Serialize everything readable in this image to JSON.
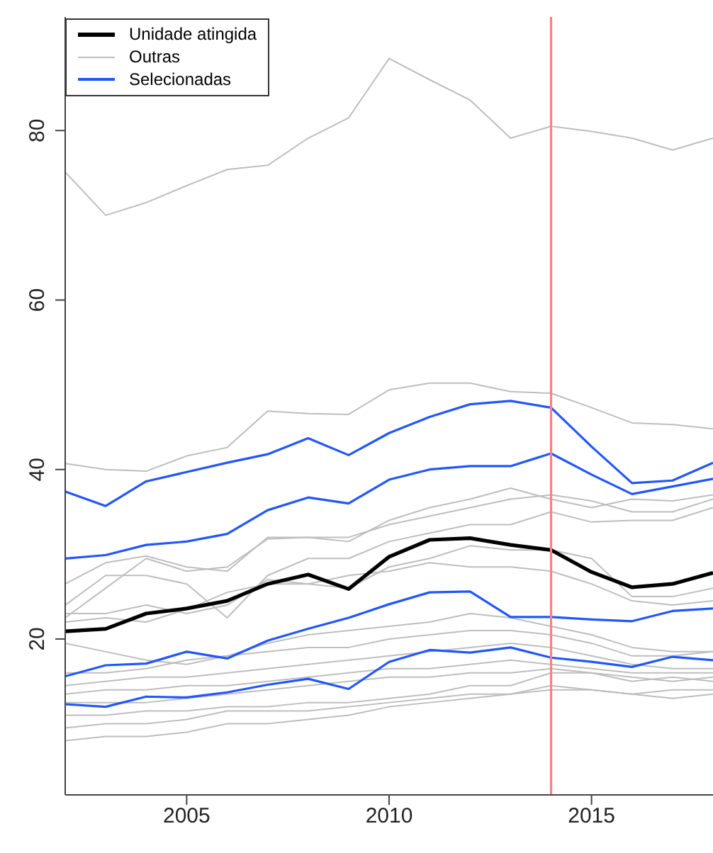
{
  "chart_data": {
    "type": "line",
    "x": [
      2002,
      2003,
      2004,
      2005,
      2006,
      2007,
      2008,
      2009,
      2010,
      2011,
      2012,
      2013,
      2014,
      2015,
      2016,
      2017,
      2018
    ],
    "series": [
      {
        "name": "Unidade atingida",
        "color": "#000000",
        "values": [
          20.9,
          21.2,
          23.0,
          23.6,
          24.5,
          26.5,
          27.6,
          25.9,
          29.7,
          31.7,
          31.9,
          31.1,
          30.5,
          27.9,
          26.1,
          26.5,
          27.8
        ]
      },
      {
        "name": "Outras",
        "color": "#bebebe",
        "values": [
          75.1,
          70.0,
          71.5,
          73.5,
          75.4,
          75.9,
          79.1,
          81.5,
          88.5,
          86.0,
          83.6,
          79.1,
          80.5,
          79.9,
          79.1,
          77.7,
          79.1
        ]
      },
      {
        "color": "#bebebe",
        "values": [
          40.7,
          40.0,
          39.8,
          41.6,
          42.6,
          46.9,
          46.6,
          46.5,
          49.4,
          50.2,
          50.2,
          49.2,
          49.0,
          47.3,
          45.5,
          45.3,
          44.8
        ]
      },
      {
        "color": "#bebebe",
        "values": [
          22.5,
          26,
          29.5,
          28,
          28.5,
          31.8,
          32,
          31.5,
          34,
          35.5,
          36.5,
          37.8,
          36.5,
          35.5,
          36.5,
          36.3,
          37.0
        ]
      },
      {
        "color": "#bebebe",
        "values": [
          26.5,
          29,
          29.8,
          28.5,
          28,
          32,
          32,
          32,
          33.5,
          34.5,
          35.5,
          36.5,
          37.0,
          36.3,
          35.0,
          35.0,
          36.5
        ]
      },
      {
        "color": "#bebebe",
        "values": [
          24,
          27.5,
          27.5,
          26.5,
          22.5,
          27.5,
          29.5,
          29.5,
          31.5,
          32.5,
          33.5,
          33.5,
          35,
          33.8,
          34,
          34,
          35.5
        ]
      },
      {
        "color": "#bebebe",
        "values": [
          23,
          23,
          24,
          23,
          24,
          27,
          26.5,
          26,
          28.5,
          29.5,
          31,
          30.5,
          30.5,
          29.5,
          25,
          25,
          26
        ]
      },
      {
        "color": "#bebebe",
        "values": [
          22,
          22.5,
          22,
          23.5,
          25.5,
          26.5,
          26.5,
          27.5,
          28,
          29,
          28.5,
          28.5,
          28,
          26.5,
          24.5,
          24,
          24.5
        ]
      },
      {
        "color": "#bebebe",
        "values": [
          19.5,
          18.5,
          17.5,
          17,
          18,
          19.5,
          20.5,
          21,
          21.5,
          22,
          23,
          22.5,
          21.5,
          20.5,
          19,
          18.5,
          18.5
        ]
      },
      {
        "color": "#bebebe",
        "values": [
          16,
          16,
          16.5,
          17.5,
          18,
          18.5,
          19,
          19,
          20,
          20.5,
          21,
          21,
          20.5,
          19.5,
          18,
          18,
          18.5
        ]
      },
      {
        "color": "#bebebe",
        "values": [
          14.5,
          15,
          15.5,
          15.5,
          16,
          16.5,
          17,
          17.5,
          18,
          18.5,
          19,
          19.5,
          19,
          18,
          17,
          16.5,
          16.5
        ]
      },
      {
        "color": "#bebebe",
        "values": [
          13.5,
          14,
          14,
          14.5,
          14.5,
          15,
          15.5,
          16,
          16.5,
          16.5,
          17,
          17.5,
          17,
          16.5,
          16,
          16,
          16
        ]
      },
      {
        "color": "#bebebe",
        "values": [
          12.5,
          12.5,
          12.5,
          13,
          13.5,
          14,
          14.5,
          15,
          15.5,
          15.5,
          16,
          16,
          16.5,
          16,
          15.5,
          15,
          15.5
        ]
      },
      {
        "color": "#bebebe",
        "values": [
          11,
          11,
          11.5,
          11.5,
          12,
          12,
          12.5,
          12.5,
          13,
          13.5,
          14.5,
          14.5,
          16,
          16,
          15,
          15.5,
          15
        ]
      },
      {
        "color": "#bebebe",
        "values": [
          9.5,
          10,
          10,
          10.5,
          11.5,
          11.5,
          11.5,
          12,
          12.5,
          13,
          13.5,
          13.5,
          14,
          14,
          13.5,
          14,
          14
        ]
      },
      {
        "color": "#bebebe",
        "values": [
          8,
          8.5,
          8.5,
          9,
          10,
          10,
          10.5,
          11,
          12,
          12.5,
          13,
          13.5,
          14.5,
          14,
          13.5,
          13,
          13.5
        ]
      },
      {
        "name": "Selecionadas",
        "color": "#2156ff",
        "values": [
          37.4,
          35.7,
          38.6,
          39.7,
          40.8,
          41.8,
          43.7,
          41.7,
          44.3,
          46.2,
          47.7,
          48.1,
          47.3,
          42.7,
          38.4,
          38.7,
          40.8
        ]
      },
      {
        "color": "#2156ff",
        "values": [
          29.5,
          29.9,
          31.1,
          31.5,
          32.4,
          35.2,
          36.7,
          36.0,
          38.8,
          40.0,
          40.4,
          40.4,
          41.9,
          39.4,
          37.1,
          38.0,
          38.9
        ]
      },
      {
        "color": "#2156ff",
        "values": [
          15.6,
          16.9,
          17.1,
          18.5,
          17.7,
          19.8,
          21.2,
          22.5,
          24.1,
          25.5,
          25.6,
          22.6,
          22.6,
          22.3,
          22.1,
          23.3,
          23.6
        ]
      },
      {
        "color": "#2156ff",
        "values": [
          12.3,
          12.0,
          13.2,
          13.1,
          13.7,
          14.6,
          15.3,
          14.1,
          17.3,
          18.7,
          18.4,
          19.0,
          17.8,
          17.3,
          16.7,
          17.9,
          17.5
        ]
      }
    ],
    "xlim": [
      2002,
      2018
    ],
    "xticks": [
      2005,
      2010,
      2015
    ],
    "ylim": [
      1.6,
      93.4
    ],
    "yticks": [
      20,
      40,
      60,
      80
    ],
    "ref_lines": [
      {
        "axis": "x",
        "value": 2014,
        "color": "#ff7f7f"
      }
    ],
    "legend": "top left"
  }
}
